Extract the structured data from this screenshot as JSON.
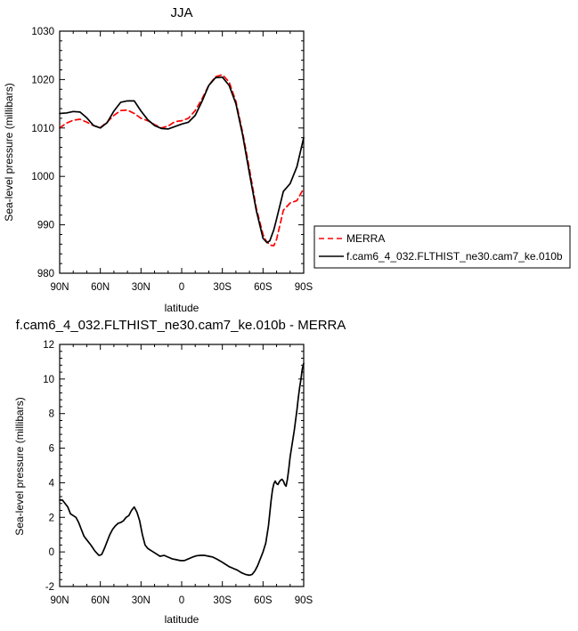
{
  "colors": {
    "merra": "#ff0000",
    "model": "#000000"
  },
  "chart_data": [
    {
      "type": "line",
      "title": "JJA",
      "xlabel": "latitude",
      "ylabel": "Sea-level pressure (millibars)",
      "xlim": [
        90,
        -90
      ],
      "ylim": [
        980,
        1030
      ],
      "x_ticks": [
        90,
        60,
        30,
        0,
        -30,
        -60,
        -90
      ],
      "x_tick_labels": [
        "90N",
        "60N",
        "30N",
        "0",
        "30S",
        "60S",
        "90S"
      ],
      "y_ticks": [
        980,
        990,
        1000,
        1010,
        1020,
        1030
      ],
      "y_tick_labels": [
        "980",
        "990",
        "1000",
        "1010",
        "1020",
        "1030"
      ],
      "legend_position": "right-outside",
      "series": [
        {
          "name": "MERRA",
          "style": "dashed",
          "color": "#ff0000",
          "x": [
            90,
            85,
            80,
            75,
            70,
            65,
            60,
            55,
            50,
            45,
            40,
            35,
            30,
            25,
            20,
            15,
            10,
            5,
            0,
            -5,
            -10,
            -15,
            -20,
            -25,
            -30,
            -35,
            -40,
            -45,
            -50,
            -55,
            -60,
            -62,
            -65,
            -68,
            -70,
            -75,
            -80,
            -85,
            -90
          ],
          "y": [
            1010,
            1011,
            1011.6,
            1011.8,
            1011.2,
            1010.5,
            1010.1,
            1011.2,
            1012.6,
            1013.6,
            1013.7,
            1013.0,
            1012.0,
            1011.5,
            1010.7,
            1010.0,
            1010.4,
            1011.3,
            1011.5,
            1012,
            1013.6,
            1016,
            1018.8,
            1020.6,
            1021.0,
            1019.5,
            1015.5,
            1009.0,
            1001.5,
            993.5,
            988,
            986.8,
            985.8,
            985.7,
            987,
            993,
            994.5,
            995,
            997.5
          ]
        },
        {
          "name": "f.cam6_4_032.FLTHIST_ne30.cam7_ke.010b",
          "style": "solid",
          "color": "#000000",
          "x": [
            90,
            85,
            80,
            75,
            70,
            65,
            60,
            55,
            50,
            45,
            40,
            35,
            30,
            25,
            20,
            15,
            10,
            5,
            0,
            -5,
            -10,
            -15,
            -20,
            -25,
            -30,
            -35,
            -40,
            -45,
            -50,
            -55,
            -60,
            -63,
            -65,
            -68,
            -70,
            -75,
            -80,
            -85,
            -90
          ],
          "y": [
            1013,
            1013.1,
            1013.4,
            1013.3,
            1012.1,
            1010.5,
            1010,
            1011.1,
            1013.5,
            1015.3,
            1015.6,
            1015.6,
            1013.5,
            1011.7,
            1010.5,
            1009.9,
            1009.8,
            1010.3,
            1010.8,
            1011.2,
            1012.6,
            1015.5,
            1018.8,
            1020.4,
            1020.5,
            1018.8,
            1015,
            1008.5,
            1000.6,
            993,
            987.2,
            986.3,
            986.7,
            989,
            991.2,
            996.9,
            998.5,
            1002,
            1008
          ]
        }
      ]
    },
    {
      "type": "line",
      "title": "f.cam6_4_032.FLTHIST_ne30.cam7_ke.010b - MERRA",
      "xlabel": "latitude",
      "ylabel": "Sea-level pressure (millibars)",
      "xlim": [
        90,
        -90
      ],
      "ylim": [
        -2,
        12
      ],
      "x_ticks": [
        90,
        60,
        30,
        0,
        -30,
        -60,
        -90
      ],
      "x_tick_labels": [
        "90N",
        "60N",
        "30N",
        "0",
        "30S",
        "60S",
        "90S"
      ],
      "y_ticks": [
        -2,
        0,
        2,
        4,
        6,
        8,
        10,
        12
      ],
      "y_tick_labels": [
        "-2",
        "0",
        "2",
        "4",
        "6",
        "8",
        "10",
        "12"
      ],
      "series": [
        {
          "color": "#000000",
          "x": [
            90,
            88,
            86,
            84,
            82,
            80,
            78,
            76,
            74,
            72,
            70,
            67,
            64,
            61,
            59,
            57,
            55,
            53,
            51,
            49,
            47,
            45,
            43,
            41,
            39,
            37,
            35,
            33,
            31,
            29,
            27,
            25,
            22,
            19,
            16,
            13,
            10,
            7,
            4,
            1,
            -2,
            -5,
            -8,
            -11,
            -14,
            -17,
            -20,
            -23,
            -26,
            -29,
            -32,
            -35,
            -38,
            -41,
            -44,
            -47,
            -50,
            -52,
            -54,
            -56,
            -58,
            -60,
            -62,
            -64,
            -66,
            -67,
            -68,
            -69,
            -70,
            -71,
            -72,
            -73,
            -74,
            -75,
            -76,
            -77,
            -78,
            -79,
            -80,
            -81,
            -82,
            -83,
            -84,
            -85,
            -86,
            -87,
            -88,
            -89,
            -90
          ],
          "y": [
            3.0,
            3.0,
            2.8,
            2.6,
            2.2,
            2.1,
            2.0,
            1.7,
            1.3,
            0.9,
            0.7,
            0.4,
            0.05,
            -0.2,
            -0.15,
            0.2,
            0.6,
            1.0,
            1.3,
            1.5,
            1.65,
            1.7,
            1.8,
            2.0,
            2.1,
            2.4,
            2.6,
            2.3,
            1.8,
            1.0,
            0.4,
            0.2,
            0.05,
            -0.1,
            -0.25,
            -0.2,
            -0.3,
            -0.4,
            -0.45,
            -0.5,
            -0.5,
            -0.4,
            -0.3,
            -0.22,
            -0.2,
            -0.2,
            -0.25,
            -0.3,
            -0.42,
            -0.55,
            -0.7,
            -0.85,
            -0.95,
            -1.05,
            -1.2,
            -1.3,
            -1.35,
            -1.3,
            -1.1,
            -0.8,
            -0.4,
            0.0,
            0.5,
            1.5,
            3.0,
            3.6,
            3.95,
            4.1,
            3.95,
            3.9,
            4.05,
            4.15,
            4.2,
            4.1,
            3.9,
            3.8,
            4.2,
            4.8,
            5.5,
            6.0,
            6.5,
            7.0,
            7.6,
            8.2,
            8.9,
            9.5,
            10.0,
            10.6,
            10.9
          ]
        }
      ]
    }
  ]
}
